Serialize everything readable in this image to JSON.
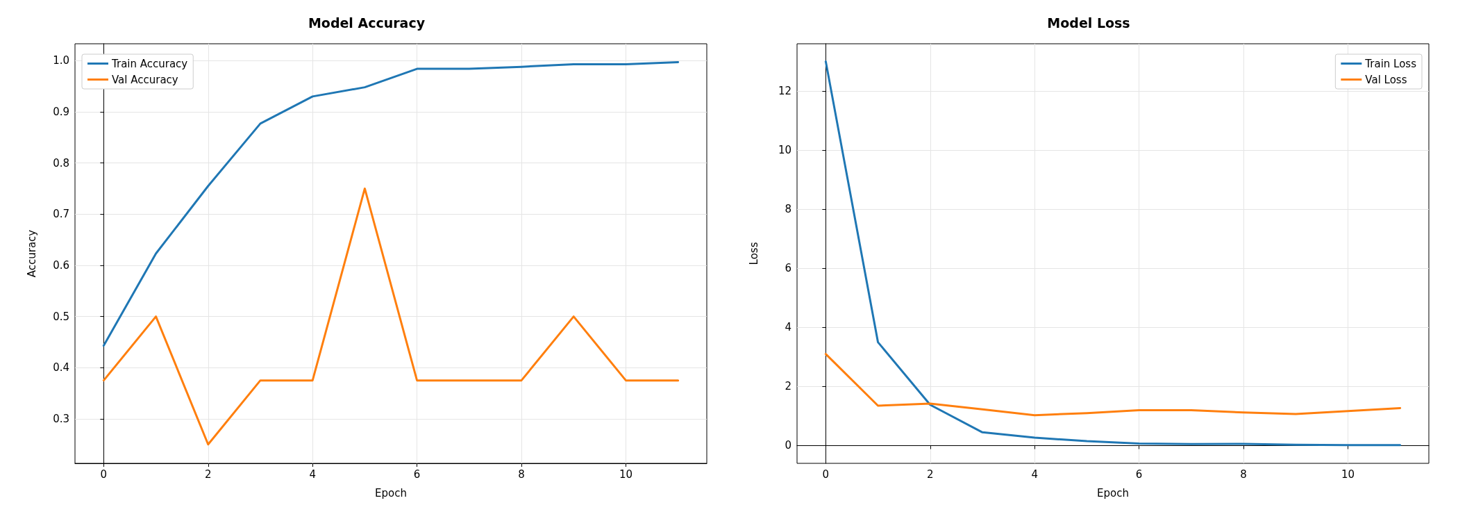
{
  "chart_data": [
    {
      "type": "line",
      "title": "Model Accuracy",
      "xlabel": "Epoch",
      "ylabel": "Accuracy",
      "x": [
        0,
        1,
        2,
        3,
        4,
        5,
        6,
        7,
        8,
        9,
        10,
        11
      ],
      "series": [
        {
          "name": "Train Accuracy",
          "color": "#1f77b4",
          "values": [
            0.443,
            0.623,
            0.755,
            0.877,
            0.93,
            0.948,
            0.984,
            0.984,
            0.988,
            0.993,
            0.993,
            0.997
          ]
        },
        {
          "name": "Val Accuracy",
          "color": "#ff7f0e",
          "values": [
            0.375,
            0.5,
            0.25,
            0.375,
            0.375,
            0.75,
            0.375,
            0.375,
            0.375,
            0.5,
            0.375,
            0.375
          ]
        }
      ],
      "xlim": [
        -0.55,
        11.55
      ],
      "xticks": [
        0,
        2,
        4,
        6,
        8,
        10
      ],
      "ylim": [
        0.213,
        1.033
      ],
      "yticks": [
        0.3,
        0.4,
        0.5,
        0.6,
        0.7,
        0.8,
        0.9,
        {
          "value": 1,
          "label": "1.0"
        }
      ],
      "grid": true,
      "legend": "top left",
      "marker": "none",
      "line_style": "solid"
    },
    {
      "type": "line",
      "title": "Model Loss",
      "xlabel": "Epoch",
      "ylabel": "Loss",
      "x": [
        0,
        1,
        2,
        3,
        4,
        5,
        6,
        7,
        8,
        9,
        10,
        11
      ],
      "series": [
        {
          "name": "Train Loss",
          "color": "#1f77b4",
          "values": [
            13.0,
            3.5,
            1.38,
            0.45,
            0.27,
            0.15,
            0.07,
            0.05,
            0.06,
            0.03,
            0.02,
            0.02
          ]
        },
        {
          "name": "Val Loss",
          "color": "#ff7f0e",
          "values": [
            3.1,
            1.35,
            1.42,
            1.23,
            1.03,
            1.1,
            1.2,
            1.2,
            1.12,
            1.07,
            1.17,
            1.27
          ]
        }
      ],
      "xlim": [
        -0.55,
        11.55
      ],
      "xticks": [
        0,
        2,
        4,
        6,
        8,
        10
      ],
      "ylim": [
        -0.6,
        13.6
      ],
      "yticks": [
        0,
        2,
        4,
        6,
        8,
        10,
        12
      ],
      "grid": true,
      "legend": "top right",
      "marker": "none",
      "line_style": "solid"
    }
  ]
}
